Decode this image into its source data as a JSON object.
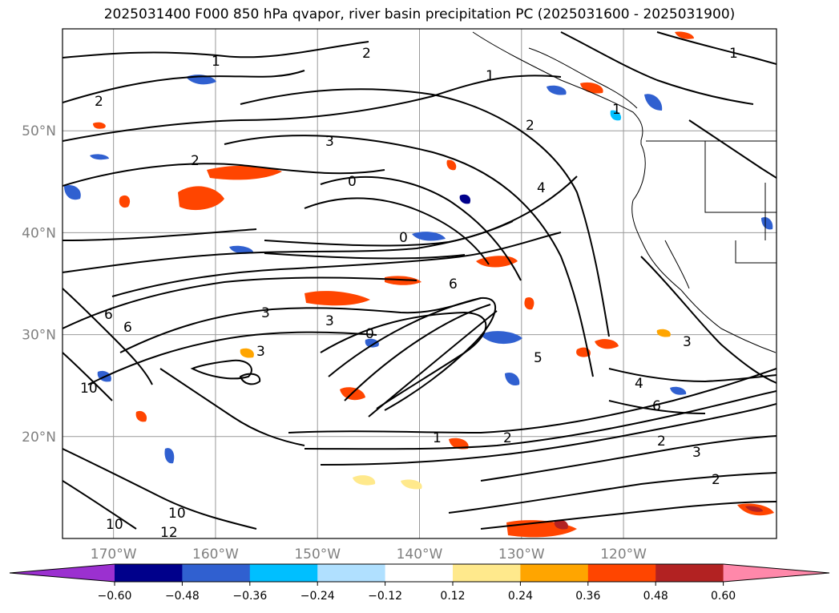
{
  "title": "2025031400 F000 850 hPa qvapor, river basin precipitation PC (2025031600 - 2025031900)",
  "map": {
    "lat_ticks": [
      {
        "value": 50,
        "label": "50°N"
      },
      {
        "value": 40,
        "label": "40°N"
      },
      {
        "value": 30,
        "label": "30°N"
      },
      {
        "value": 20,
        "label": "20°N"
      }
    ],
    "lon_ticks": [
      {
        "value": -170,
        "label": "170°W"
      },
      {
        "value": -160,
        "label": "160°W"
      },
      {
        "value": -150,
        "label": "150°W"
      },
      {
        "value": -140,
        "label": "140°W"
      },
      {
        "value": -130,
        "label": "130°W"
      },
      {
        "value": -120,
        "label": "120°W"
      }
    ],
    "extent": {
      "lon_min": -175,
      "lon_max": -105,
      "lat_min": 10,
      "lat_max": 60
    },
    "contour_labels": [
      "1",
      "2",
      "3",
      "2",
      "0",
      "0",
      "4",
      "1",
      "2",
      "3",
      "3",
      "6",
      "6",
      "3",
      "2",
      "1",
      "2",
      "3",
      "10",
      "10",
      "10",
      "12",
      "1",
      "0",
      "6",
      "5",
      "4",
      "6",
      "2",
      "3",
      "2",
      "1"
    ]
  },
  "colorbar": {
    "ticks": [
      "−0.60",
      "−0.48",
      "−0.36",
      "−0.24",
      "−0.12",
      "0.12",
      "0.24",
      "0.36",
      "0.48",
      "0.60"
    ],
    "colors": [
      "#9b30d0",
      "#00008b",
      "#3060d0",
      "#00bfff",
      "#b0e0ff",
      "#ffffff",
      "#ffe98c",
      "#ffa500",
      "#ff4500",
      "#b22222",
      "#ff88aa"
    ]
  }
}
